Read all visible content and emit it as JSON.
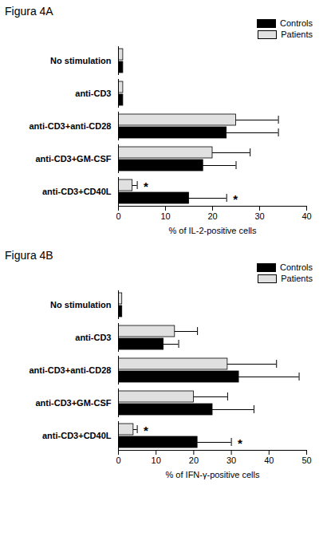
{
  "chart_data": [
    {
      "type": "bar",
      "title": "Figura 4A",
      "orientation": "horizontal",
      "legend": "top-right",
      "x_label": "% of IL-2-positive cells",
      "categories": [
        "No stimulation",
        "anti-CD3",
        "anti-CD3+anti-CD28",
        "anti-CD3+GM-CSF",
        "anti-CD3+CD40L"
      ],
      "series": [
        {
          "name": "Patients",
          "color": "#e0e0e0",
          "values": [
            1,
            1,
            25,
            20,
            3
          ],
          "errors": [
            0,
            0,
            9,
            8,
            1
          ],
          "value_annotations": [
            null,
            null,
            null,
            null,
            "*"
          ]
        },
        {
          "name": "Controls",
          "color": "#000000",
          "values": [
            1,
            1,
            23,
            18,
            15
          ],
          "errors": [
            0,
            0,
            11,
            7,
            8
          ],
          "value_annotations": [
            null,
            null,
            null,
            null,
            "*"
          ]
        }
      ],
      "xlim": [
        0,
        40
      ],
      "xticks": [
        0,
        10,
        20,
        30,
        40
      ]
    },
    {
      "type": "bar",
      "title": "Figura 4B",
      "orientation": "horizontal",
      "legend": "top-right",
      "x_label": "% of IFN-γ-positive cells",
      "categories": [
        "No stimulation",
        "anti-CD3",
        "anti-CD3+anti-CD28",
        "anti-CD3+GM-CSF",
        "anti-CD3+CD40L"
      ],
      "series": [
        {
          "name": "Patients",
          "color": "#e0e0e0",
          "values": [
            1,
            15,
            29,
            20,
            4
          ],
          "errors": [
            0,
            6,
            13,
            9,
            1
          ],
          "value_annotations": [
            null,
            null,
            null,
            null,
            "*"
          ]
        },
        {
          "name": "Controls",
          "color": "#000000",
          "values": [
            1,
            12,
            32,
            25,
            21
          ],
          "errors": [
            0,
            4,
            16,
            11,
            9
          ],
          "value_annotations": [
            null,
            null,
            null,
            null,
            "*"
          ]
        }
      ],
      "xlim": [
        0,
        50
      ],
      "xticks": [
        0,
        10,
        20,
        30,
        40,
        50
      ]
    }
  ]
}
